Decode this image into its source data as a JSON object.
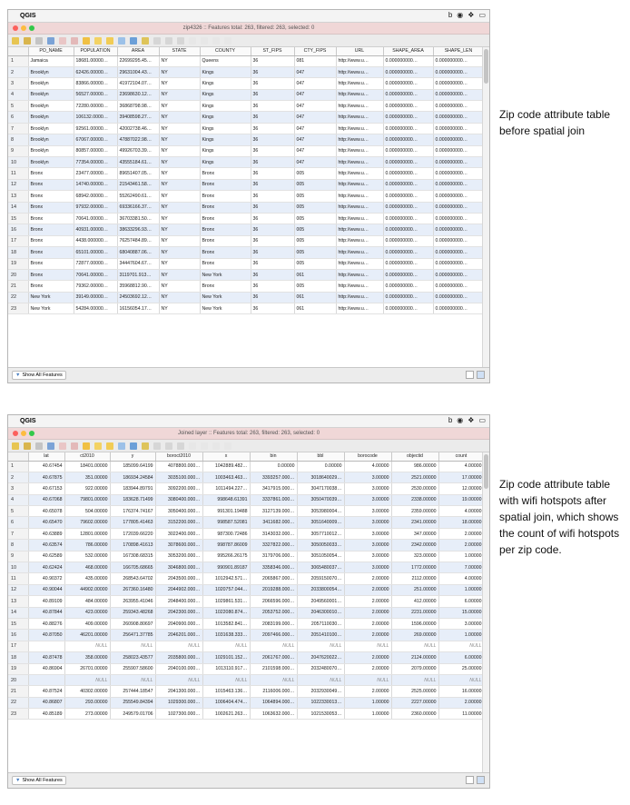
{
  "menubar": {
    "apple_glyph": "",
    "app_name": "QGIS",
    "tray_icons": [
      "b",
      "◉",
      "❖",
      "▭"
    ]
  },
  "top_window": {
    "title": "zip4326 :: Features total: 263, filtered: 263, selected: 0",
    "columns": [
      "PO_NAME",
      "POPULATION",
      "AREA",
      "STATE",
      "COUNTY",
      "ST_FIPS",
      "CTY_FIPS",
      "URL",
      "SHAPE_AREA",
      "SHAPE_LEN"
    ],
    "rows": [
      [
        "1",
        "Jamaica",
        "18681.00000…",
        "22699295.45…",
        "NY",
        "Queens",
        "36",
        "081",
        "http://www.u…",
        "0.000000000…",
        "0.000000000…"
      ],
      [
        "2",
        "Brooklyn",
        "62426.00000…",
        "29631004.43…",
        "NY",
        "Kings",
        "36",
        "047",
        "http://www.u…",
        "0.000000000…",
        "0.000000000…"
      ],
      [
        "3",
        "Brooklyn",
        "83866.00000…",
        "41972104.07…",
        "NY",
        "Kings",
        "36",
        "047",
        "http://www.u…",
        "0.000000000…",
        "0.000000000…"
      ],
      [
        "4",
        "Brooklyn",
        "56527.00000…",
        "23698630.12…",
        "NY",
        "Kings",
        "36",
        "047",
        "http://www.u…",
        "0.000000000…",
        "0.000000000…"
      ],
      [
        "5",
        "Brooklyn",
        "72280.00000…",
        "36868798.98…",
        "NY",
        "Kings",
        "36",
        "047",
        "http://www.u…",
        "0.000000000…",
        "0.000000000…"
      ],
      [
        "6",
        "Brooklyn",
        "106132.0000…",
        "39408598.27…",
        "NY",
        "Kings",
        "36",
        "047",
        "http://www.u…",
        "0.000000000…",
        "0.000000000…"
      ],
      [
        "7",
        "Brooklyn",
        "92561.00000…",
        "42002738.46…",
        "NY",
        "Kings",
        "36",
        "047",
        "http://www.u…",
        "0.000000000…",
        "0.000000000…"
      ],
      [
        "8",
        "Brooklyn",
        "67067.00000…",
        "47887022.98…",
        "NY",
        "Kings",
        "36",
        "047",
        "http://www.u…",
        "0.000000000…",
        "0.000000000…"
      ],
      [
        "9",
        "Brooklyn",
        "80857.00000…",
        "49926703.39…",
        "NY",
        "Kings",
        "36",
        "047",
        "http://www.u…",
        "0.000000000…",
        "0.000000000…"
      ],
      [
        "10",
        "Brooklyn",
        "77354.00000…",
        "43555184.61…",
        "NY",
        "Kings",
        "36",
        "047",
        "http://www.u…",
        "0.000000000…",
        "0.000000000…"
      ],
      [
        "11",
        "Bronx",
        "23477.00000…",
        "89651407.05…",
        "NY",
        "Bronx",
        "36",
        "005",
        "http://www.u…",
        "0.000000000…",
        "0.000000000…"
      ],
      [
        "12",
        "Bronx",
        "14740.00000…",
        "21543461.58…",
        "NY",
        "Bronx",
        "36",
        "005",
        "http://www.u…",
        "0.000000000…",
        "0.000000000…"
      ],
      [
        "13",
        "Bronx",
        "68942.00000…",
        "55262490.61…",
        "NY",
        "Bronx",
        "36",
        "005",
        "http://www.u…",
        "0.000000000…",
        "0.000000000…"
      ],
      [
        "14",
        "Bronx",
        "97932.00000…",
        "69336166.37…",
        "NY",
        "Bronx",
        "36",
        "005",
        "http://www.u…",
        "0.000000000…",
        "0.000000000…"
      ],
      [
        "15",
        "Bronx",
        "70641.00000…",
        "36703381.50…",
        "NY",
        "Bronx",
        "36",
        "005",
        "http://www.u…",
        "0.000000000…",
        "0.000000000…"
      ],
      [
        "16",
        "Bronx",
        "40931.00000…",
        "38633296.93…",
        "NY",
        "Bronx",
        "36",
        "005",
        "http://www.u…",
        "0.000000000…",
        "0.000000000…"
      ],
      [
        "17",
        "Bronx",
        "4438.000000…",
        "76257484.89…",
        "NY",
        "Bronx",
        "36",
        "005",
        "http://www.u…",
        "0.000000000…",
        "0.000000000…"
      ],
      [
        "18",
        "Bronx",
        "65101.00000…",
        "68040887.06…",
        "NY",
        "Bronx",
        "36",
        "005",
        "http://www.u…",
        "0.000000000…",
        "0.000000000…"
      ],
      [
        "19",
        "Bronx",
        "72877.00000…",
        "34447604.67…",
        "NY",
        "Bronx",
        "36",
        "005",
        "http://www.u…",
        "0.000000000…",
        "0.000000000…"
      ],
      [
        "20",
        "Bronx",
        "70641.00000…",
        "3119701.913…",
        "NY",
        "New York",
        "36",
        "061",
        "http://www.u…",
        "0.000000000…",
        "0.000000000…"
      ],
      [
        "21",
        "Bronx",
        "79362.00000…",
        "35968812.90…",
        "NY",
        "Bronx",
        "36",
        "005",
        "http://www.u…",
        "0.000000000…",
        "0.000000000…"
      ],
      [
        "22",
        "New York",
        "39149.00000…",
        "24503692.12…",
        "NY",
        "New York",
        "36",
        "061",
        "http://www.u…",
        "0.000000000…",
        "0.000000000…"
      ],
      [
        "23",
        "New York",
        "54284.00000…",
        "16156054.17…",
        "NY",
        "New York",
        "36",
        "061",
        "http://www.u…",
        "0.000000000…",
        "0.000000000…"
      ]
    ],
    "footer_button": "Show All Features"
  },
  "bottom_window": {
    "title": "Joined layer :: Features total: 263, filtered: 263, selected: 0",
    "columns": [
      "lat",
      "ct2010",
      "y",
      "boroct2010",
      "x",
      "bin",
      "bbl",
      "borocode",
      "objectid",
      "count"
    ],
    "rows": [
      [
        "1",
        "40.67454",
        "18401.00000",
        "185099.64199",
        "4078800.000…",
        "1042889.482…",
        "0.00000",
        "0.00000",
        "4.00000",
        "986.00000",
        "4.00000"
      ],
      [
        "2",
        "40.67875",
        "351.00000",
        "186934.24584",
        "3035100.000…",
        "1003463.463…",
        "3393257.000…",
        "3018640029…",
        "3.00000",
        "2521.00000",
        "17.00000"
      ],
      [
        "3",
        "40.67153",
        "922.00000",
        "183944.89791",
        "3092200.000…",
        "1011494.227…",
        "3417915.000…",
        "3047170038…",
        "3.00000",
        "2530.00000",
        "12.00000"
      ],
      [
        "4",
        "40.67068",
        "79801.00000",
        "183628.71499",
        "3080400.000…",
        "998648.61391",
        "3337861.000…",
        "3050470039…",
        "3.00000",
        "2338.00000",
        "19.00000"
      ],
      [
        "5",
        "40.65078",
        "504.00000",
        "176374.74167",
        "3050400.000…",
        "991301.19488",
        "3127139.000…",
        "3053980004…",
        "3.00000",
        "2359.00000",
        "4.00000"
      ],
      [
        "6",
        "40.65470",
        "79602.00000",
        "177805.41463",
        "3152200.000…",
        "998587.52081",
        "3411682.000…",
        "3051640009…",
        "3.00000",
        "2341.00000",
        "18.00000"
      ],
      [
        "7",
        "40.63889",
        "12801.00000",
        "172039.66220",
        "3022400.000…",
        "987300.72486",
        "3143032.000…",
        "3057710012…",
        "3.00000",
        "347.00000",
        "2.00000"
      ],
      [
        "8",
        "40.63574",
        "786.00000",
        "170898.41613",
        "3078600.000…",
        "998787.86009",
        "3327822.000…",
        "3050050033…",
        "3.00000",
        "2342.00000",
        "2.00000"
      ],
      [
        "9",
        "40.62589",
        "532.00000",
        "167308.68315",
        "3053200.000…",
        "995266.26175",
        "3179706.000…",
        "3051050054…",
        "3.00000",
        "323.00000",
        "1.00000"
      ],
      [
        "10",
        "40.62424",
        "468.00000",
        "166705.68665",
        "3046800.000…",
        "990901.89187",
        "3358346.000…",
        "3065480037…",
        "3.00000",
        "1772.00000",
        "7.00000"
      ],
      [
        "11",
        "40.90372",
        "435.00000",
        "268543.64702",
        "2043500.000…",
        "1012942.571…",
        "2065867.000…",
        "2059150070…",
        "2.00000",
        "2112.00000",
        "4.00000"
      ],
      [
        "12",
        "40.90044",
        "44902.00000",
        "267360.16480",
        "2044902.000…",
        "1020757.044…",
        "2019288.000…",
        "2033800054…",
        "2.00000",
        "251.00000",
        "1.00000"
      ],
      [
        "13",
        "40.89109",
        "484.00000",
        "263955.41046",
        "2048400.000…",
        "1029861.531…",
        "2066596.000…",
        "2049560001…",
        "2.00000",
        "412.00000",
        "6.00000"
      ],
      [
        "14",
        "40.87844",
        "423.00000",
        "259343.48268",
        "2042300.000…",
        "1022080.874…",
        "2053752.000…",
        "2046300010…",
        "2.00000",
        "2231.00000",
        "15.00000"
      ],
      [
        "15",
        "40.88276",
        "409.00000",
        "260908.80697",
        "2040900.000…",
        "1013582.841…",
        "2083199.000…",
        "2057110030…",
        "2.00000",
        "1596.00000",
        "3.00000"
      ],
      [
        "16",
        "40.87050",
        "46201.00000",
        "256471.37785",
        "2046201.000…",
        "1031638.333…",
        "2097466.000…",
        "2051410100…",
        "2.00000",
        "269.00000",
        "1.00000"
      ],
      [
        "17",
        "",
        "NULL",
        "NULL",
        "NULL",
        "NULL",
        "NULL",
        "NULL",
        "NULL",
        "NULL",
        "NULL"
      ],
      [
        "18",
        "40.87478",
        "358.00000",
        "258023.43577",
        "2035800.000…",
        "1029101.152…",
        "2061767.000…",
        "2047620022…",
        "2.00000",
        "2124.00000",
        "6.00000"
      ],
      [
        "19",
        "40.86904",
        "26701.00000",
        "255907.58600",
        "2040100.000…",
        "1013110.917…",
        "2101598.000…",
        "2032480070…",
        "2.00000",
        "2079.00000",
        "25.00000"
      ],
      [
        "20",
        "",
        "NULL",
        "NULL",
        "NULL",
        "NULL",
        "NULL",
        "NULL",
        "NULL",
        "NULL",
        "NULL"
      ],
      [
        "21",
        "40.87524",
        "40302.00000",
        "257444.18547",
        "2041300.000…",
        "1015463.136…",
        "2116006.000…",
        "2032930049…",
        "2.00000",
        "2525.00000",
        "16.00000"
      ],
      [
        "22",
        "40.86807",
        "293.00000",
        "255549.84394",
        "1029300.000…",
        "1006404.474…",
        "1064894.000…",
        "1022330013…",
        "1.00000",
        "2227.00000",
        "2.00000"
      ],
      [
        "23",
        "40.85189",
        "273.00000",
        "249579.01706",
        "1027300.000…",
        "1002621.263…",
        "1063632.000…",
        "1021530053…",
        "1.00000",
        "2360.00000",
        "11.00000"
      ]
    ],
    "footer_button": "Show All Features"
  },
  "captions": {
    "top": "Zip code attribute table before spatial join",
    "bottom": "Zip code attribute table with wifi hotspots after spatial join, which shows the count of wifi hotspots per zip code."
  }
}
